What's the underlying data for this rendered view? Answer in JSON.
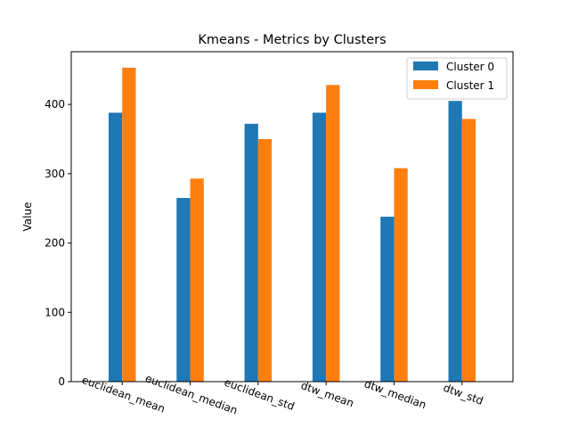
{
  "chart_data": {
    "type": "bar",
    "title": "Kmeans - Metrics by Clusters",
    "xlabel": "",
    "ylabel": "Value",
    "categories": [
      "euclidean_mean",
      "euclidean_median",
      "euclidean_std",
      "dtw_mean",
      "dtw_median",
      "dtw_std"
    ],
    "series": [
      {
        "name": "Cluster 0",
        "color": "#1f77b4",
        "values": [
          388,
          265,
          372,
          388,
          238,
          405
        ]
      },
      {
        "name": "Cluster 1",
        "color": "#ff7f0e",
        "values": [
          453,
          293,
          350,
          428,
          308,
          379
        ]
      }
    ],
    "ylim": [
      0,
      476
    ],
    "yticks": [
      0,
      100,
      200,
      300,
      400
    ],
    "grid": false,
    "legend_position": "top-right"
  }
}
